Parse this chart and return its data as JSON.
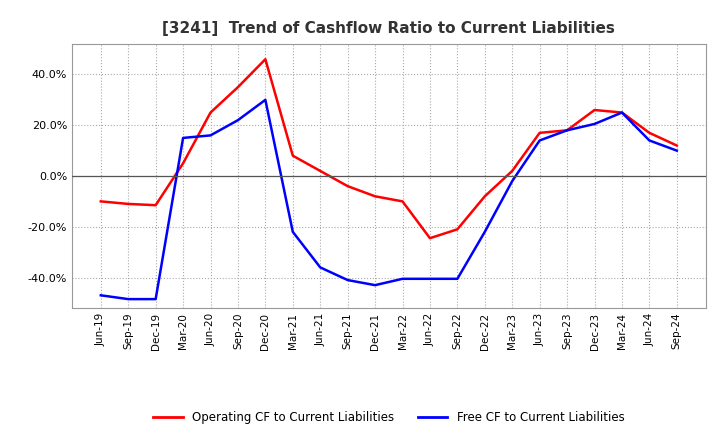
{
  "title": "[3241]  Trend of Cashflow Ratio to Current Liabilities",
  "x_labels": [
    "Jun-19",
    "Sep-19",
    "Dec-19",
    "Mar-20",
    "Jun-20",
    "Sep-20",
    "Dec-20",
    "Mar-21",
    "Jun-21",
    "Sep-21",
    "Dec-21",
    "Mar-22",
    "Jun-22",
    "Sep-22",
    "Dec-22",
    "Mar-23",
    "Jun-23",
    "Sep-23",
    "Dec-23",
    "Mar-24",
    "Jun-24",
    "Sep-24"
  ],
  "operating_cf": [
    -10.0,
    -11.0,
    -11.5,
    5.0,
    25.0,
    35.0,
    46.0,
    8.0,
    2.0,
    -4.0,
    -8.0,
    -10.0,
    -24.5,
    -21.0,
    -8.0,
    2.0,
    17.0,
    18.0,
    26.0,
    25.0,
    17.0,
    12.0
  ],
  "free_cf": [
    -47.0,
    -48.5,
    -48.5,
    15.0,
    16.0,
    22.0,
    30.0,
    -22.0,
    -36.0,
    -41.0,
    -43.0,
    -40.5,
    -40.5,
    -40.5,
    -22.0,
    -2.0,
    14.0,
    18.0,
    20.5,
    25.0,
    14.0,
    10.0
  ],
  "operating_color": "#ff0000",
  "free_color": "#0000ff",
  "ylim": [
    -52,
    52
  ],
  "yticks": [
    -40.0,
    -20.0,
    0.0,
    20.0,
    40.0
  ],
  "background_color": "#ffffff",
  "grid_color": "#aaaaaa",
  "title_fontsize": 11,
  "title_color": "#333333",
  "legend_labels": [
    "Operating CF to Current Liabilities",
    "Free CF to Current Liabilities"
  ]
}
